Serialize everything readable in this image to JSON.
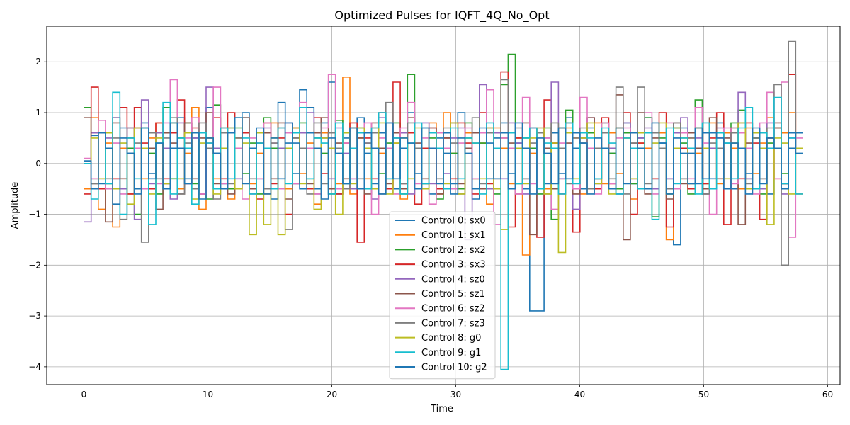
{
  "chart_data": {
    "type": "line",
    "title": "Optimized Pulses for IQFT_4Q_No_Opt",
    "xlabel": "Time",
    "ylabel": "Amplitude",
    "xlim": [
      -3,
      61
    ],
    "ylim": [
      -4.35,
      2.7
    ],
    "xticks": [
      0,
      10,
      20,
      30,
      40,
      50,
      60
    ],
    "yticks": [
      -4,
      -3,
      -2,
      -1,
      0,
      1,
      2
    ],
    "grid": true,
    "legend_position": "bottom-center",
    "step_width": 0.58,
    "x_start": 0,
    "x_end": 58.2,
    "series": [
      {
        "name": "Control 0: sx0",
        "color": "#1f77b4",
        "values": [
          0.05,
          0.55,
          -0.4,
          0.6,
          -0.3,
          0.7,
          0.2,
          -0.5,
          0.8,
          -0.2,
          0.6,
          -0.4,
          0.3,
          0.9,
          -0.3,
          0.5,
          -0.6,
          1.1,
          0.2,
          -0.4,
          0.7,
          -0.5,
          1.0,
          0.3,
          -0.3,
          0.6,
          -0.7,
          1.2,
          0.4,
          -0.2,
          1.45,
          1.1,
          -0.5,
          0.8,
          1.6,
          -0.6,
          0.5,
          -0.3,
          0.9,
          0.2,
          -0.4,
          0.6,
          0.8,
          -0.5,
          0.3,
          1.0,
          -0.2,
          0.7,
          -0.6,
          0.5,
          0.2,
          -0.4,
          1.0,
          0.3,
          -0.7,
          0.6,
          -0.3,
          0.5,
          0.8,
          -0.2,
          0.4,
          -0.5,
          -2.9,
          -2.9,
          -0.4,
          0.6,
          -0.2,
          0.9,
          0.3,
          -0.5,
          0.7,
          -0.3,
          0.6,
          0.2,
          -0.6,
          0.8,
          -0.4,
          0.5,
          0.9,
          -0.3,
          0.4,
          -0.6,
          -1.6,
          0.7,
          0.2,
          -0.4,
          0.6,
          -0.3,
          0.8,
          0.4,
          -0.5,
          0.6,
          -0.2,
          0.5,
          0.3,
          -0.6,
          0.7,
          -0.4,
          0.3,
          0.6
        ]
      },
      {
        "name": "Control 1: sx1",
        "color": "#ff7f0e",
        "values": [
          -0.5,
          0.9,
          -0.9,
          0.4,
          -1.25,
          0.3,
          -0.6,
          0.7,
          -0.3,
          0.5,
          0.8,
          -0.4,
          0.6,
          -0.5,
          0.2,
          1.1,
          -0.9,
          0.4,
          -0.3,
          0.6,
          -0.7,
          0.5,
          0.9,
          -0.4,
          0.2,
          -0.6,
          0.8,
          0.3,
          -0.5,
          0.7,
          -0.2,
          0.4,
          -0.8,
          0.6,
          0.3,
          -0.4,
          1.7,
          -0.6,
          0.5,
          -0.3,
          0.7,
          0.2,
          -0.5,
          0.4,
          -0.7,
          0.6,
          0.3,
          -0.4,
          0.8,
          -0.6,
          1.0,
          0.2,
          -0.5,
          0.6,
          -0.3,
          0.4,
          -0.8,
          0.7,
          0.3,
          -0.4,
          0.5,
          -1.8,
          0.2,
          0.6,
          -0.5,
          0.4,
          -0.3,
          0.7,
          0.5,
          -0.6,
          0.3,
          0.8,
          -0.4,
          0.6,
          -0.2,
          0.5,
          -0.7,
          0.4,
          0.3,
          -0.5,
          0.6,
          -1.5,
          0.7,
          -0.3,
          0.5,
          0.2,
          -0.6,
          0.8,
          -0.4,
          0.6,
          0.3,
          -0.5,
          0.7,
          -0.2,
          0.4,
          0.9,
          -0.3,
          0.6,
          1.0,
          -0.6
        ]
      },
      {
        "name": "Control 2: sx2",
        "color": "#2ca02c",
        "values": [
          1.1,
          -0.3,
          0.6,
          -0.4,
          0.9,
          -0.5,
          0.3,
          -1.0,
          0.7,
          0.2,
          -0.6,
          1.1,
          -0.3,
          0.5,
          0.8,
          -0.4,
          0.6,
          -0.7,
          1.15,
          0.3,
          -0.5,
          0.7,
          -0.2,
          0.4,
          -0.6,
          0.9,
          0.3,
          -0.5,
          0.6,
          -0.4,
          0.8,
          -0.3,
          0.5,
          0.2,
          -0.6,
          0.85,
          -0.4,
          0.3,
          0.7,
          -0.5,
          0.6,
          -0.2,
          0.4,
          0.8,
          -0.6,
          1.75,
          0.3,
          -0.4,
          0.5,
          -0.7,
          0.6,
          0.2,
          -0.5,
          0.8,
          -0.3,
          0.4,
          0.6,
          -0.6,
          1.55,
          2.15,
          -0.4,
          0.5,
          0.3,
          -0.6,
          0.7,
          -1.1,
          0.7,
          1.05,
          -0.5,
          0.4,
          0.6,
          -0.3,
          0.8,
          0.2,
          -0.5,
          0.6,
          -0.4,
          0.3,
          0.9,
          -1.05,
          0.5,
          -0.3,
          0.7,
          0.4,
          -0.6,
          1.25,
          -0.4,
          0.6,
          0.3,
          -0.5,
          0.8,
          1.05,
          -0.3,
          0.5,
          -0.6,
          0.4,
          0.7,
          -0.2,
          0.6,
          0.3
        ]
      },
      {
        "name": "Control 3: sx3",
        "color": "#d62728",
        "values": [
          -0.6,
          1.5,
          -0.5,
          0.6,
          -0.3,
          1.1,
          -0.6,
          1.1,
          0.4,
          -0.5,
          0.8,
          -0.3,
          0.6,
          1.25,
          -0.4,
          0.7,
          -0.6,
          0.5,
          0.9,
          -0.3,
          1.0,
          -0.5,
          0.6,
          0.3,
          -0.7,
          0.8,
          -0.4,
          0.5,
          -1.0,
          0.7,
          0.3,
          -0.5,
          0.9,
          -0.2,
          0.6,
          -0.6,
          0.4,
          0.8,
          -1.55,
          0.5,
          -0.3,
          1.0,
          -0.5,
          1.6,
          -0.4,
          0.6,
          -0.8,
          0.3,
          0.7,
          -0.5,
          0.5,
          -0.3,
          0.8,
          0.4,
          -0.6,
          1.0,
          -0.4,
          0.6,
          1.8,
          -1.25,
          0.5,
          -0.3,
          0.7,
          -1.45,
          1.25,
          0.4,
          -0.6,
          0.8,
          -1.35,
          0.6,
          0.3,
          -0.5,
          0.9,
          -0.4,
          0.7,
          1.0,
          -1.0,
          0.4,
          0.6,
          -0.3,
          1.0,
          -1.25,
          0.6,
          0.3,
          -0.5,
          0.7,
          -0.4,
          0.5,
          1.0,
          -1.2,
          0.6,
          -0.3,
          0.8,
          0.4,
          -1.1,
          0.5,
          0.7,
          -0.4,
          1.75,
          0.3
        ]
      },
      {
        "name": "Control 4: sz0",
        "color": "#9467bd",
        "values": [
          -1.15,
          0.6,
          -0.3,
          0.5,
          0.9,
          -0.5,
          0.7,
          -1.1,
          1.25,
          -0.4,
          0.6,
          0.3,
          -0.7,
          0.8,
          -0.4,
          0.5,
          -0.6,
          1.5,
          0.3,
          -0.5,
          0.6,
          -0.3,
          0.9,
          -0.6,
          0.4,
          0.7,
          -0.5,
          0.3,
          0.8,
          -0.4,
          0.6,
          1.0,
          -0.6,
          0.5,
          -0.3,
          0.7,
          0.2,
          -0.5,
          0.6,
          0.4,
          -0.7,
          0.9,
          -0.3,
          0.5,
          0.6,
          -0.6,
          0.3,
          0.8,
          -0.4,
          0.6,
          -0.2,
          0.5,
          0.7,
          -1.5,
          0.4,
          1.55,
          -0.5,
          0.6,
          -0.3,
          0.8,
          0.4,
          -0.6,
          0.7,
          -0.5,
          0.5,
          1.6,
          -0.3,
          0.6,
          -0.9,
          0.4,
          0.9,
          -0.4,
          0.6,
          0.3,
          -0.6,
          0.8,
          -0.3,
          0.5,
          0.7,
          -0.5,
          0.4,
          -0.3,
          0.6,
          0.9,
          -0.4,
          0.5,
          -0.6,
          0.3,
          0.7,
          -0.5,
          0.4,
          1.4,
          -0.3,
          0.6,
          -0.5,
          0.8,
          0.3,
          -0.6,
          0.5,
          0.3
        ]
      },
      {
        "name": "Control 5: sz1",
        "color": "#8c564b",
        "values": [
          0.9,
          -0.4,
          0.6,
          -1.15,
          0.8,
          -0.3,
          0.5,
          0.7,
          -0.5,
          0.3,
          -0.9,
          0.6,
          0.4,
          -0.6,
          0.8,
          -0.3,
          0.5,
          1.0,
          -0.4,
          0.7,
          -0.6,
          0.3,
          0.9,
          -0.5,
          0.4,
          0.6,
          -0.3,
          0.8,
          -0.7,
          0.5,
          0.3,
          -0.4,
          0.6,
          0.9,
          -0.5,
          0.4,
          -0.3,
          0.7,
          0.5,
          -0.6,
          0.8,
          0.3,
          -0.4,
          0.6,
          -0.5,
          0.9,
          0.4,
          -0.3,
          0.7,
          -0.6,
          0.5,
          0.8,
          -0.4,
          0.3,
          0.6,
          -0.5,
          0.7,
          -0.3,
          0.5,
          0.4,
          -0.6,
          0.8,
          -1.4,
          0.6,
          0.3,
          -0.5,
          0.7,
          0.4,
          -0.6,
          0.5,
          0.9,
          -0.3,
          0.6,
          -0.5,
          1.35,
          -1.5,
          0.4,
          1.0,
          -0.6,
          0.5,
          0.3,
          -0.7,
          0.8,
          -0.4,
          0.6,
          0.3,
          -0.5,
          0.9,
          -0.3,
          0.5,
          0.7,
          -1.2,
          0.4,
          0.6,
          -0.3,
          0.5,
          0.8,
          -0.4,
          0.6,
          0.3
        ]
      },
      {
        "name": "Control 6: sz2",
        "color": "#e377c2",
        "values": [
          0.1,
          -0.3,
          0.85,
          -0.5,
          0.4,
          -0.6,
          0.7,
          0.3,
          -0.5,
          0.6,
          -0.4,
          0.8,
          1.65,
          -0.3,
          0.5,
          0.9,
          -0.6,
          0.4,
          1.5,
          -0.4,
          0.6,
          0.3,
          -0.7,
          0.5,
          -0.3,
          0.8,
          0.4,
          -0.5,
          0.6,
          -0.4,
          1.2,
          0.3,
          -0.6,
          0.7,
          1.75,
          -0.5,
          0.4,
          -0.3,
          0.6,
          0.8,
          -1.0,
          0.5,
          0.3,
          -0.6,
          0.7,
          1.2,
          -0.4,
          0.5,
          -0.8,
          0.6,
          0.3,
          -0.5,
          0.4,
          0.7,
          -0.3,
          0.6,
          1.45,
          -1.2,
          0.5,
          0.3,
          -0.6,
          1.3,
          -0.4,
          0.7,
          0.5,
          -0.9,
          0.4,
          0.6,
          -0.5,
          1.3,
          0.3,
          -0.6,
          0.8,
          -0.4,
          0.5,
          0.7,
          -0.3,
          0.6,
          1.0,
          -0.6,
          0.4,
          0.8,
          -0.5,
          0.6,
          -0.3,
          1.1,
          0.4,
          -1.0,
          0.5,
          0.7,
          -0.4,
          0.6,
          0.3,
          -0.6,
          0.8,
          1.4,
          -0.3,
          1.6,
          -1.45,
          0.5
        ]
      },
      {
        "name": "Control 7: sz3",
        "color": "#7f7f7f",
        "values": [
          0.0,
          -0.4,
          0.6,
          -0.3,
          0.5,
          -1.1,
          0.7,
          0.4,
          -1.55,
          0.6,
          -0.3,
          0.5,
          0.9,
          -0.6,
          0.4,
          -0.5,
          0.8,
          0.3,
          -0.7,
          0.6,
          -0.4,
          0.5,
          0.9,
          -0.3,
          0.6,
          -0.5,
          0.4,
          0.7,
          -1.3,
          0.5,
          0.3,
          -0.6,
          0.8,
          -0.4,
          0.6,
          0.3,
          -0.5,
          0.7,
          -0.3,
          0.4,
          0.6,
          -0.6,
          1.2,
          0.5,
          -0.4,
          0.8,
          0.3,
          -0.5,
          0.6,
          -0.3,
          0.7,
          0.4,
          -0.6,
          0.5,
          0.9,
          -0.4,
          0.6,
          0.3,
          1.65,
          -0.5,
          0.7,
          -0.3,
          0.4,
          0.6,
          -0.6,
          0.8,
          0.3,
          -0.4,
          0.5,
          0.7,
          -0.5,
          0.3,
          0.6,
          -0.3,
          1.5,
          -0.6,
          0.4,
          1.5,
          -0.4,
          0.6,
          0.3,
          -0.5,
          0.8,
          -0.3,
          0.5,
          0.7,
          -0.6,
          0.4,
          0.3,
          -0.5,
          0.6,
          0.8,
          -0.4,
          0.5,
          -0.3,
          0.7,
          1.55,
          -2.0,
          2.4,
          0.3
        ]
      },
      {
        "name": "Control 8: g0",
        "color": "#bcbd22",
        "values": [
          0.0,
          0.5,
          -0.3,
          0.6,
          -0.5,
          0.4,
          -0.8,
          0.7,
          0.3,
          -0.6,
          0.5,
          -0.4,
          0.8,
          -0.3,
          0.6,
          -0.7,
          0.4,
          0.5,
          -0.6,
          0.3,
          0.7,
          -0.5,
          0.4,
          -1.4,
          0.6,
          -1.2,
          0.5,
          -1.4,
          0.3,
          0.7,
          -0.4,
          0.6,
          -0.9,
          0.5,
          0.3,
          -1.0,
          0.6,
          -0.4,
          0.7,
          0.3,
          -0.5,
          0.8,
          -0.6,
          0.4,
          0.5,
          -0.3,
          0.7,
          -0.5,
          0.6,
          0.3,
          -0.4,
          0.8,
          -0.6,
          0.5,
          0.4,
          -0.3,
          0.7,
          -0.5,
          -1.3,
          0.6,
          0.3,
          -0.4,
          0.5,
          0.7,
          -0.6,
          0.4,
          -1.75,
          0.6,
          -0.3,
          0.5,
          0.8,
          -0.4,
          0.3,
          -0.6,
          0.7,
          0.5,
          -0.3,
          0.6,
          -0.5,
          0.4,
          0.8,
          -0.6,
          0.3,
          0.5,
          -0.4,
          0.7,
          0.3,
          -0.5,
          0.6,
          -0.3,
          0.4,
          0.8,
          -0.5,
          0.6,
          0.3,
          -1.2,
          0.5,
          0.4,
          -0.6,
          0.3
        ]
      },
      {
        "name": "Control 9: g1",
        "color": "#17becf",
        "values": [
          0.0,
          -0.7,
          0.6,
          -0.4,
          1.4,
          -1.0,
          0.5,
          -0.3,
          0.7,
          -1.2,
          0.4,
          1.2,
          -0.6,
          0.5,
          0.3,
          -0.8,
          0.6,
          0.4,
          -0.5,
          0.7,
          -0.3,
          0.9,
          0.5,
          -0.6,
          0.4,
          0.3,
          -0.5,
          0.7,
          -0.4,
          0.6,
          1.1,
          -0.3,
          0.5,
          0.4,
          -0.6,
          0.8,
          -0.4,
          0.3,
          0.6,
          -0.5,
          0.7,
          1.0,
          -0.3,
          0.5,
          -0.6,
          0.4,
          0.8,
          -0.4,
          0.6,
          0.3,
          -0.5,
          0.7,
          -0.3,
          0.5,
          0.4,
          -0.6,
          0.8,
          0.3,
          -4.05,
          0.6,
          -0.4,
          0.5,
          0.7,
          -0.5,
          0.4,
          0.3,
          -0.6,
          0.8,
          -0.4,
          0.6,
          0.5,
          -0.3,
          0.7,
          0.4,
          -0.6,
          0.5,
          0.3,
          -0.5,
          0.6,
          -1.1,
          0.4,
          0.7,
          -0.4,
          0.5,
          0.3,
          -0.6,
          0.8,
          -0.5,
          0.6,
          0.4,
          -0.3,
          0.7,
          1.1,
          -0.5,
          0.6,
          0.3,
          1.3,
          -0.4,
          0.5,
          -0.6
        ]
      },
      {
        "name": "Control 10: g2",
        "color": "#1f77b4",
        "values": [
          0.05,
          -0.5,
          0.6,
          0.3,
          -0.8,
          0.5,
          0.2,
          -0.6,
          0.7,
          -0.3,
          0.4,
          -0.5,
          0.8,
          0.3,
          -0.4,
          0.6,
          -0.7,
          0.5,
          0.2,
          -0.5,
          0.6,
          0.9,
          -0.4,
          0.3,
          0.7,
          -0.6,
          0.5,
          -0.3,
          0.8,
          0.4,
          -0.5,
          0.6,
          0.3,
          -0.7,
          0.5,
          0.2,
          -0.4,
          0.7,
          -0.5,
          0.6,
          0.3,
          -0.6,
          0.8,
          -0.3,
          0.5,
          0.4,
          -0.5,
          0.7,
          0.3,
          -0.4,
          0.6,
          -0.6,
          0.5,
          0.2,
          -0.5,
          0.7,
          0.4,
          -0.3,
          0.6,
          -0.5,
          0.8,
          0.3,
          -0.6,
          0.5,
          0.2,
          -0.4,
          0.7,
          -0.3,
          0.6,
          0.4,
          -0.6,
          0.5,
          0.3,
          -0.5,
          0.7,
          -0.4,
          0.6,
          0.3,
          -0.5,
          0.8,
          0.4,
          -0.6,
          0.5,
          0.2,
          -0.4,
          0.7,
          -0.3,
          0.6,
          0.5,
          -0.5,
          0.4,
          0.3,
          -0.6,
          0.7,
          -0.4,
          0.5,
          0.3,
          -0.5,
          0.6,
          0.2
        ]
      }
    ]
  }
}
